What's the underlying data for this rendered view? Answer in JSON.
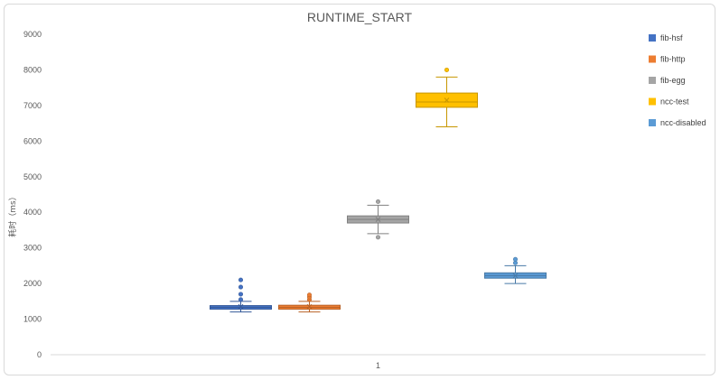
{
  "chart_data": {
    "type": "boxplot",
    "title": "RUNTIME_START",
    "ylabel": "耗时（ms）",
    "xlabel": "",
    "categories": [
      "1"
    ],
    "ylim": [
      0,
      9000
    ],
    "yticks": [
      0,
      1000,
      2000,
      3000,
      4000,
      5000,
      6000,
      7000,
      8000,
      9000
    ],
    "grid": false,
    "legend_position": "top-right",
    "series": [
      {
        "name": "fib-hsf",
        "color": "#4472c4",
        "min": 1200,
        "q1": 1280,
        "median": 1330,
        "q3": 1380,
        "max": 1500,
        "mean": 1350,
        "outliers": [
          1550,
          1700,
          1900,
          2100
        ]
      },
      {
        "name": "fib-http",
        "color": "#ed7d31",
        "min": 1200,
        "q1": 1280,
        "median": 1330,
        "q3": 1390,
        "max": 1500,
        "mean": 1350,
        "outliers": [
          1550,
          1620,
          1680
        ]
      },
      {
        "name": "fib-egg",
        "color": "#a5a5a5",
        "min": 3400,
        "q1": 3700,
        "median": 3800,
        "q3": 3900,
        "max": 4200,
        "mean": 3800,
        "outliers": [
          3300,
          4300
        ]
      },
      {
        "name": "ncc-test",
        "color": "#ffc000",
        "min": 6400,
        "q1": 6950,
        "median": 7100,
        "q3": 7350,
        "max": 7800,
        "mean": 7150,
        "outliers": [
          8000
        ]
      },
      {
        "name": "ncc-disabled",
        "color": "#5b9bd5",
        "min": 2000,
        "q1": 2150,
        "median": 2220,
        "q3": 2300,
        "max": 2500,
        "mean": 2220,
        "outliers": [
          2580,
          2680
        ]
      }
    ]
  }
}
